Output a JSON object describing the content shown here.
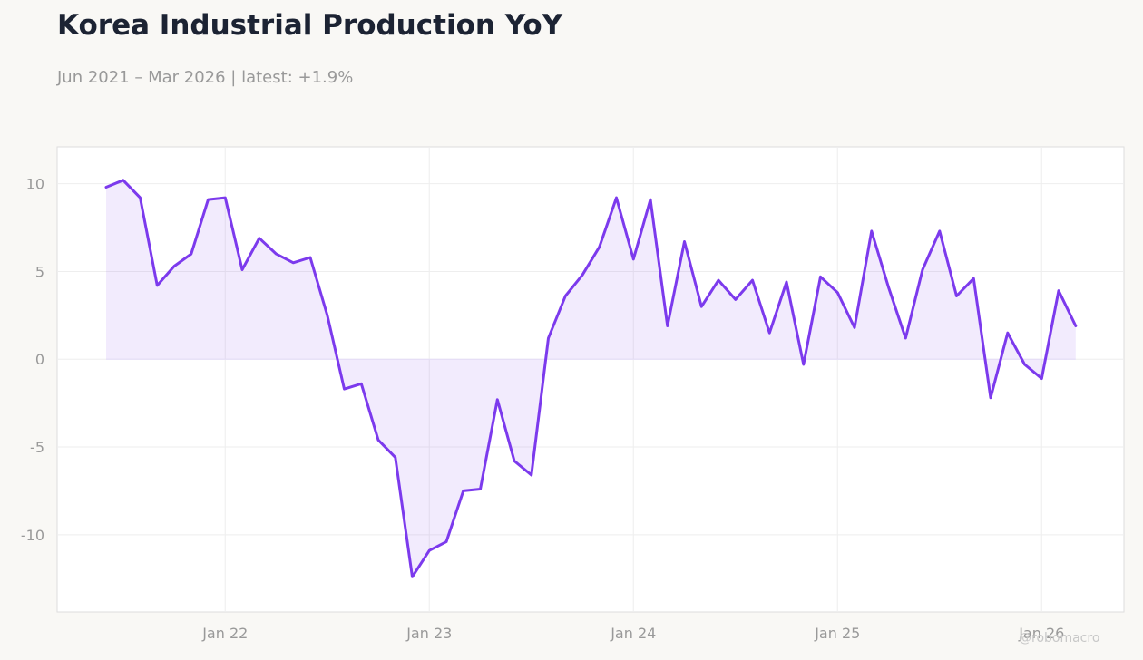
{
  "header": {
    "title": "Korea Industrial Production YoY",
    "subtitle": "Jun 2021 – Mar 2026 | latest: +1.9%"
  },
  "watermark": "@robomacro",
  "colors": {
    "line": "#7c3aed",
    "fill": "#7c3aed",
    "plot_bg": "#ffffff",
    "page_bg": "#f9f8f5",
    "grid": "#eeeeee",
    "zero_line": "#e4dcf7",
    "axis_text": "#999999"
  },
  "chart_data": {
    "type": "area",
    "title": "Korea Industrial Production YoY",
    "xlabel": "",
    "ylabel": "",
    "x_start": "2021-06",
    "x_end": "2026-03",
    "x_ticks": [
      "2022-01",
      "2023-01",
      "2024-01",
      "2025-01",
      "2026-01"
    ],
    "x_tick_labels": [
      "Jan 22",
      "Jan 23",
      "Jan 24",
      "Jan 25",
      "Jan 26"
    ],
    "y_ticks": [
      10,
      5,
      0,
      -5,
      -10
    ],
    "y_tick_labels": [
      "10",
      "5",
      "0",
      "-5",
      "-10"
    ],
    "ylim": [
      -14.4,
      12.1
    ],
    "grid": true,
    "legend": "none",
    "series": [
      {
        "x": [
          "2021-06",
          "2021-07",
          "2021-08",
          "2021-09",
          "2021-10",
          "2021-11",
          "2021-12",
          "2022-01",
          "2022-02",
          "2022-03",
          "2022-04",
          "2022-05",
          "2022-06",
          "2022-07",
          "2022-08",
          "2022-09",
          "2022-10",
          "2022-11",
          "2022-12",
          "2023-01",
          "2023-02",
          "2023-03",
          "2023-04",
          "2023-05",
          "2023-06",
          "2023-07",
          "2023-08",
          "2023-09",
          "2023-10",
          "2023-11",
          "2023-12",
          "2024-01",
          "2024-02",
          "2024-03",
          "2024-04",
          "2024-05",
          "2024-06",
          "2024-07",
          "2024-08",
          "2024-09",
          "2024-10",
          "2024-11",
          "2024-12",
          "2025-01",
          "2025-02",
          "2025-03",
          "2025-04",
          "2025-05",
          "2025-06",
          "2025-07",
          "2025-08",
          "2025-09",
          "2025-10",
          "2025-11",
          "2025-12",
          "2026-01",
          "2026-02",
          "2026-03"
        ],
        "values": [
          9.8,
          10.2,
          9.2,
          4.2,
          5.3,
          6.0,
          9.1,
          9.2,
          5.1,
          6.9,
          6.0,
          5.5,
          5.8,
          2.5,
          -1.7,
          -1.4,
          -4.6,
          -5.6,
          -12.4,
          -10.9,
          -10.4,
          -7.5,
          -7.4,
          -2.3,
          -5.8,
          -6.6,
          1.2,
          3.6,
          4.8,
          6.4,
          9.2,
          5.7,
          9.1,
          1.9,
          6.7,
          3.0,
          4.5,
          3.4,
          4.5,
          1.5,
          4.4,
          -0.3,
          4.7,
          3.8,
          1.8,
          7.3,
          4.1,
          1.2,
          5.1,
          7.3,
          3.6,
          4.6,
          -2.2,
          1.5,
          -0.3,
          -1.1,
          3.9,
          1.9
        ]
      }
    ]
  }
}
